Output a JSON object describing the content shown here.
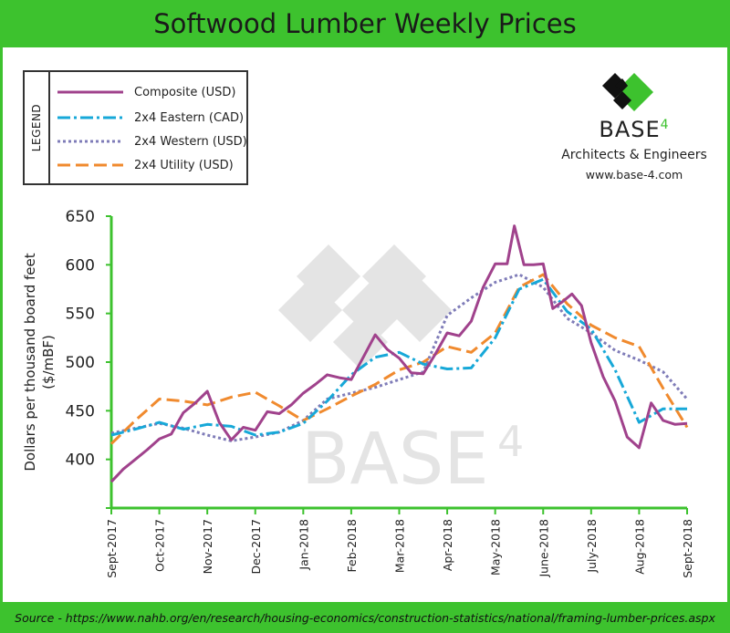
{
  "header": {
    "title": "Softwood Lumber Weekly Prices"
  },
  "footer": {
    "source": "Source - https://www.nahb.org/en/research/housing-economics/construction-statistics/national/framing-lumber-prices.aspx"
  },
  "brand": {
    "name": "BASE",
    "name_sup": "4",
    "subtitle": "Architects & Engineers",
    "url": "www.base-4.com",
    "watermark": "BASE",
    "watermark_sup": "4",
    "accent_color": "#3dc22e"
  },
  "legend": {
    "title": "LEGEND",
    "placement": "top-left",
    "entries": [
      {
        "label": "Composite (USD)",
        "color": "#a0428c",
        "style": "solid"
      },
      {
        "label": "2x4 Eastern (CAD)",
        "color": "#17a8d8",
        "style": "dash-dot"
      },
      {
        "label": "2x4 Western (USD)",
        "color": "#7f7cb8",
        "style": "dotted"
      },
      {
        "label": "2x4 Utility (USD)",
        "color": "#f08a2e",
        "style": "dashed"
      }
    ]
  },
  "chart_data": {
    "type": "line",
    "title": "Softwood Lumber Weekly Prices",
    "ylabel": "Dollars per thousand board feet ($/mBF)",
    "xlabel": "",
    "ylim": [
      350,
      650
    ],
    "yticks": [
      400,
      450,
      500,
      550,
      600,
      650
    ],
    "xlim": [
      0,
      12
    ],
    "xticks": [
      "Sept-2017",
      "Oct-2017",
      "Nov-2017",
      "Dec-2017",
      "Jan-2018",
      "Feb-2018",
      "Mar-2018",
      "Apr-2018",
      "May-2018",
      "June-2018",
      "July-2018",
      "Aug-2018",
      "Sept-2018"
    ],
    "grid": false,
    "series": [
      {
        "name": "Composite (USD)",
        "x": [
          0,
          0.25,
          0.5,
          0.75,
          1.0,
          1.25,
          1.5,
          1.75,
          2.0,
          2.25,
          2.5,
          2.75,
          3.0,
          3.25,
          3.5,
          3.75,
          4.0,
          4.25,
          4.5,
          4.75,
          5.0,
          5.25,
          5.5,
          5.75,
          6.0,
          6.25,
          6.5,
          6.75,
          7.0,
          7.25,
          7.5,
          7.75,
          8.0,
          8.25,
          8.4,
          8.6,
          8.8,
          9.0,
          9.2,
          9.4,
          9.6,
          9.8,
          10.0,
          10.25,
          10.5,
          10.75,
          11.0,
          11.25,
          11.5,
          11.75,
          12.0
        ],
        "values": [
          377,
          390,
          400,
          410,
          421,
          426,
          448,
          458,
          470,
          438,
          420,
          433,
          430,
          449,
          447,
          456,
          468,
          477,
          487,
          484,
          482,
          505,
          528,
          513,
          504,
          489,
          488,
          508,
          530,
          527,
          542,
          577,
          601,
          601,
          640,
          600,
          600,
          601,
          555,
          562,
          570,
          558,
          520,
          485,
          460,
          423,
          412,
          458,
          440,
          436,
          437
        ]
      },
      {
        "name": "2x4 Eastern (CAD)",
        "x": [
          0,
          0.5,
          1.0,
          1.5,
          2.0,
          2.5,
          3.0,
          3.5,
          4.0,
          4.5,
          5.0,
          5.5,
          6.0,
          6.5,
          7.0,
          7.5,
          8.0,
          8.5,
          9.0,
          9.5,
          10.0,
          10.5,
          11.0,
          11.5,
          12.0
        ],
        "values": [
          425,
          431,
          438,
          431,
          436,
          434,
          425,
          428,
          437,
          460,
          487,
          505,
          510,
          498,
          493,
          494,
          525,
          575,
          585,
          552,
          534,
          492,
          438,
          452,
          452
        ]
      },
      {
        "name": "2x4 Western (USD)",
        "x": [
          0,
          0.5,
          1.0,
          1.5,
          2.0,
          2.5,
          3.0,
          3.5,
          4.0,
          4.5,
          5.0,
          5.5,
          6.0,
          6.5,
          7.0,
          7.5,
          8.0,
          8.5,
          9.0,
          9.5,
          10.0,
          10.5,
          11.0,
          11.5,
          12.0
        ],
        "values": [
          427,
          432,
          437,
          432,
          425,
          419,
          423,
          428,
          440,
          462,
          468,
          474,
          482,
          490,
          548,
          566,
          582,
          590,
          577,
          545,
          530,
          512,
          502,
          490,
          462
        ]
      },
      {
        "name": "2x4 Utility (USD)",
        "x": [
          0,
          0.5,
          1.0,
          1.5,
          2.0,
          2.5,
          3.0,
          3.5,
          4.0,
          4.5,
          5.0,
          5.5,
          6.0,
          6.5,
          7.0,
          7.5,
          8.0,
          8.5,
          9.0,
          9.5,
          10.0,
          10.5,
          11.0,
          11.5,
          12.0
        ],
        "values": [
          416,
          440,
          462,
          460,
          456,
          464,
          469,
          455,
          440,
          452,
          465,
          477,
          492,
          500,
          516,
          510,
          530,
          577,
          590,
          560,
          538,
          525,
          516,
          473,
          433
        ]
      }
    ]
  }
}
